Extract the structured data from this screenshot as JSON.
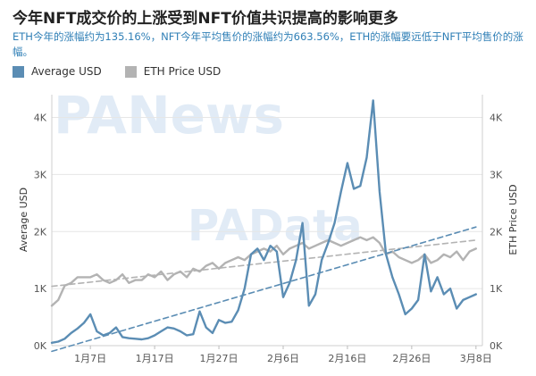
{
  "title": "今年NFT成交价的上涨受到NFT价值共识提高的影响更多",
  "subtitle": "ETH今年的涨幅约为135.16%，NFT今年平均售价的涨幅约为663.56%，ETH的涨幅要远低于NFT平均售价的涨幅。",
  "watermarks": {
    "top": "PANews",
    "middle": "PAData"
  },
  "colors": {
    "average_usd": "#5b8db4",
    "eth_price": "#b3b3b3",
    "axis_text": "#555555",
    "grid": "#e6e6e6"
  },
  "chart_data": {
    "type": "line",
    "title": "今年NFT成交价的上涨受到NFT价值共识提高的影响更多",
    "xlabel": "",
    "ylabel": "Average USD",
    "y2label": "ETH Price USD",
    "x_tick_labels": [
      "1月7日",
      "1月17日",
      "1月27日",
      "2月6日",
      "2月16日",
      "2月26日",
      "3月8日"
    ],
    "x_tick_days": [
      6,
      16,
      26,
      36,
      46,
      56,
      66
    ],
    "xlim": [
      0,
      67
    ],
    "ylim": [
      0,
      4400
    ],
    "y_tick_labels": [
      "0K",
      "1K",
      "2K",
      "3K",
      "4K"
    ],
    "y_tick_values": [
      0,
      1000,
      2000,
      3000,
      4000
    ],
    "y2lim": [
      0,
      4400
    ],
    "y2_tick_labels": [
      "0K",
      "1K",
      "2K",
      "3K",
      "4K"
    ],
    "y2_tick_values": [
      0,
      1000,
      2000,
      3000,
      4000
    ],
    "grid": true,
    "legend_position": "top-left",
    "series": [
      {
        "name": "Average USD",
        "axis": "left",
        "color": "#5b8db4",
        "x": [
          0,
          1,
          2,
          3,
          4,
          5,
          6,
          7,
          8,
          9,
          10,
          11,
          12,
          13,
          14,
          15,
          16,
          17,
          18,
          19,
          20,
          21,
          22,
          23,
          24,
          25,
          26,
          27,
          28,
          29,
          30,
          31,
          32,
          33,
          34,
          35,
          36,
          37,
          38,
          39,
          40,
          41,
          42,
          43,
          44,
          45,
          46,
          47,
          48,
          49,
          50,
          51,
          52,
          53,
          54,
          55,
          56,
          57,
          58,
          59,
          60,
          61,
          62,
          63,
          64,
          65,
          66
        ],
        "values": [
          50,
          70,
          120,
          220,
          300,
          400,
          550,
          250,
          180,
          220,
          320,
          150,
          130,
          120,
          110,
          130,
          180,
          250,
          320,
          300,
          250,
          180,
          200,
          600,
          320,
          220,
          450,
          400,
          420,
          620,
          1000,
          1600,
          1700,
          1500,
          1750,
          1650,
          850,
          1100,
          1500,
          2150,
          700,
          900,
          1500,
          1800,
          2150,
          2700,
          3200,
          2750,
          2800,
          3300,
          4300,
          2700,
          1600,
          1200,
          900,
          550,
          650,
          800,
          1600,
          950,
          1200,
          900,
          1000,
          650,
          800,
          850,
          900
        ]
      },
      {
        "name": "ETH Price USD",
        "axis": "right",
        "color": "#b3b3b3",
        "x": [
          0,
          1,
          2,
          3,
          4,
          5,
          6,
          7,
          8,
          9,
          10,
          11,
          12,
          13,
          14,
          15,
          16,
          17,
          18,
          19,
          20,
          21,
          22,
          23,
          24,
          25,
          26,
          27,
          28,
          29,
          30,
          31,
          32,
          33,
          34,
          35,
          36,
          37,
          38,
          39,
          40,
          41,
          42,
          43,
          44,
          45,
          46,
          47,
          48,
          49,
          50,
          51,
          52,
          53,
          54,
          55,
          56,
          57,
          58,
          59,
          60,
          61,
          62,
          63,
          64,
          65,
          66
        ],
        "values": [
          700,
          800,
          1050,
          1100,
          1200,
          1200,
          1200,
          1250,
          1150,
          1100,
          1150,
          1250,
          1100,
          1150,
          1150,
          1250,
          1200,
          1300,
          1150,
          1250,
          1300,
          1200,
          1350,
          1300,
          1400,
          1450,
          1350,
          1450,
          1500,
          1550,
          1500,
          1600,
          1650,
          1700,
          1650,
          1750,
          1600,
          1700,
          1750,
          1800,
          1700,
          1750,
          1800,
          1850,
          1800,
          1750,
          1800,
          1850,
          1900,
          1850,
          1900,
          1800,
          1600,
          1650,
          1550,
          1500,
          1450,
          1500,
          1600,
          1450,
          1500,
          1600,
          1550,
          1650,
          1500,
          1650,
          1700
        ]
      },
      {
        "name": "Average USD trend",
        "axis": "left",
        "style": "dashed",
        "color": "#5b8db4",
        "x": [
          0,
          66
        ],
        "values": [
          -100,
          2080
        ]
      },
      {
        "name": "ETH Price USD trend",
        "axis": "right",
        "style": "dashed",
        "color": "#b3b3b3",
        "x": [
          0,
          66
        ],
        "values": [
          1040,
          1850
        ]
      }
    ]
  }
}
